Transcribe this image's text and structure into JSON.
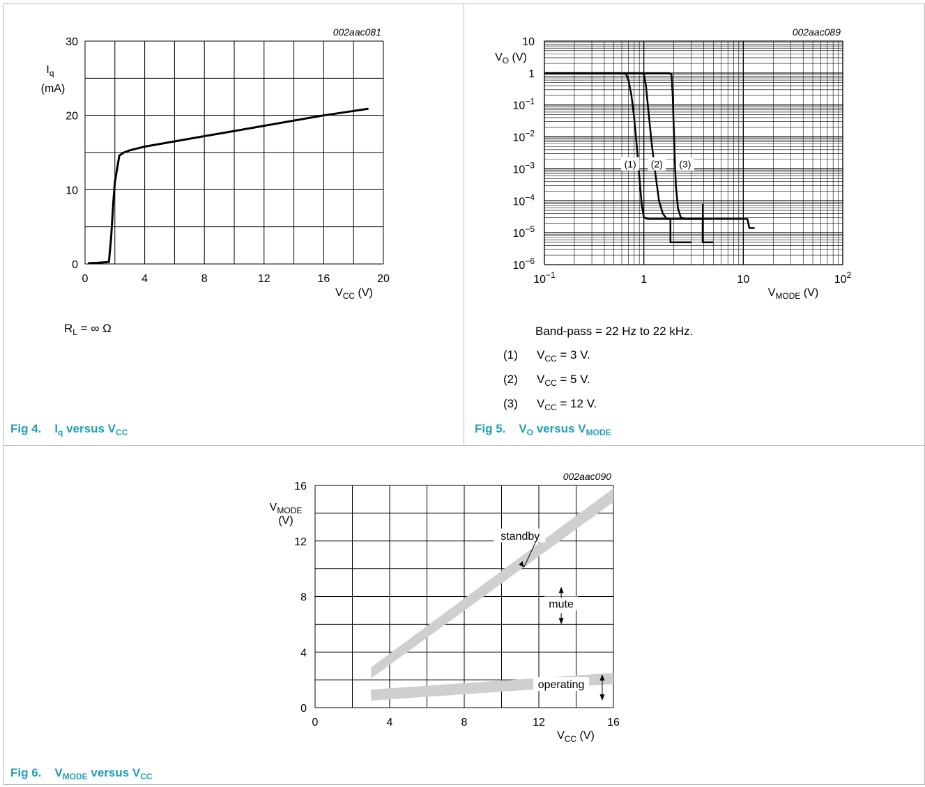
{
  "colors": {
    "accent": "#1f9fb4",
    "band": "#cfcfcf"
  },
  "fig4": {
    "caption": {
      "prefix": "Fig 4.",
      "a": "I",
      "a_sub": "q",
      "mid": " versus V",
      "b_sub": "CC"
    },
    "note": {
      "pre": "R",
      "sub": "L",
      "post": " = ∞ Ω"
    },
    "chart_data": {
      "type": "line",
      "id_label": "002aac081",
      "ylabel_main": "I",
      "ylabel_sub": "q",
      "yunit": "(mA)",
      "xlabel_main": "V",
      "xlabel_sub": "CC",
      "xunit": " (V)",
      "xlim": [
        0,
        20
      ],
      "ylim": [
        0,
        30
      ],
      "x_grid": [
        0,
        2,
        4,
        6,
        8,
        10,
        12,
        14,
        16,
        18,
        20
      ],
      "y_grid": [
        0,
        5,
        10,
        15,
        20,
        25,
        30
      ],
      "x_ticks": [
        {
          "v": 0,
          "label": "0"
        },
        {
          "v": 4,
          "label": "4"
        },
        {
          "v": 8,
          "label": "8"
        },
        {
          "v": 12,
          "label": "12"
        },
        {
          "v": 16,
          "label": "16"
        },
        {
          "v": 20,
          "label": "20"
        }
      ],
      "y_ticks": [
        {
          "v": 0,
          "label": "0"
        },
        {
          "v": 10,
          "label": "10"
        },
        {
          "v": 20,
          "label": "20"
        },
        {
          "v": 30,
          "label": "30"
        }
      ],
      "grid": true,
      "series": [
        {
          "x": [
            0.2,
            0.8,
            1.6,
            1.75,
            1.9,
            2.0,
            2.3,
            2.6,
            3.0,
            4.0,
            6.0,
            8.0,
            10.0,
            12.0,
            14.0,
            16.0,
            18.0,
            19.0
          ],
          "y": [
            0.1,
            0.15,
            0.25,
            3.5,
            8.5,
            11.0,
            14.6,
            15.0,
            15.3,
            15.8,
            16.5,
            17.2,
            17.9,
            18.6,
            19.3,
            20.0,
            20.6,
            20.9
          ]
        }
      ]
    }
  },
  "fig5": {
    "caption": {
      "prefix": "Fig 5.",
      "a": "V",
      "a_sub": "O",
      "mid": " versus V",
      "b_sub": "MODE"
    },
    "notes": {
      "bandpass": "Band-pass = 22 Hz to 22 kHz.",
      "items": [
        {
          "num": "(1)",
          "pre": "V",
          "sub": "CC",
          "post": " = 3 V."
        },
        {
          "num": "(2)",
          "pre": "V",
          "sub": "CC",
          "post": " = 5 V."
        },
        {
          "num": "(3)",
          "pre": "V",
          "sub": "CC",
          "post": " = 12 V."
        }
      ]
    },
    "chart_data": {
      "type": "line",
      "id_label": "002aac089",
      "scale": "log-log",
      "ylabel_main": "V",
      "ylabel_sub": "O",
      "yunit": " (V)",
      "xlabel_main": "V",
      "xlabel_sub": "MODE",
      "xunit": " (V)",
      "xlim": [
        0.1,
        100
      ],
      "ylim": [
        1e-06,
        10
      ],
      "x_ticks": [
        {
          "v": 0.1,
          "base": "10",
          "exp": "−1"
        },
        {
          "v": 1,
          "base": "1",
          "exp": ""
        },
        {
          "v": 10,
          "base": "10",
          "exp": ""
        },
        {
          "v": 100,
          "base": "10",
          "exp": "2"
        }
      ],
      "y_ticks": [
        {
          "v": 10,
          "base": "10",
          "exp": ""
        },
        {
          "v": 1,
          "base": "1",
          "exp": ""
        },
        {
          "v": 0.1,
          "base": "10",
          "exp": "−1"
        },
        {
          "v": 0.01,
          "base": "10",
          "exp": "−2"
        },
        {
          "v": 0.001,
          "base": "10",
          "exp": "−3"
        },
        {
          "v": 0.0001,
          "base": "10",
          "exp": "−4"
        },
        {
          "v": 1e-05,
          "base": "10",
          "exp": "−5"
        },
        {
          "v": 1e-06,
          "base": "10",
          "exp": "−6"
        }
      ],
      "grid": true,
      "series": [
        {
          "name": "(1)",
          "x": [
            0.1,
            0.62,
            0.66,
            0.7,
            0.75,
            0.8,
            0.85,
            0.9,
            0.95,
            1.0,
            1.1,
            1.85,
            1.85,
            3.0
          ],
          "y": [
            1,
            1,
            0.95,
            0.6,
            0.2,
            0.04,
            0.005,
            0.0006,
            8e-05,
            3e-05,
            2.7e-05,
            2.7e-05,
            5e-06,
            5e-06
          ]
        },
        {
          "name": "(2)",
          "x": [
            0.1,
            0.95,
            1.0,
            1.05,
            1.12,
            1.2,
            1.3,
            1.42,
            1.55,
            1.7,
            3.9,
            3.9,
            5.0
          ],
          "y": [
            1,
            1,
            0.95,
            0.4,
            0.05,
            0.006,
            0.0008,
            0.0001,
            4e-05,
            2.7e-05,
            2.7e-05,
            5e-06,
            5e-06
          ]
        },
        {
          "name": "(3)",
          "x": [
            0.1,
            1.8,
            1.9,
            1.95,
            2.0,
            2.05,
            2.1,
            2.2,
            2.35,
            2.6,
            11.0,
            11.5,
            13.0
          ],
          "y": [
            1,
            1,
            0.9,
            0.2,
            0.02,
            0.002,
            0.0003,
            6e-05,
            3e-05,
            2.7e-05,
            2.7e-05,
            1.4e-05,
            1.4e-05
          ]
        }
      ],
      "vertical_marker": {
        "x": 3.9,
        "y_top": 8e-05,
        "y_bottom": 5e-06
      },
      "curve_labels": [
        {
          "text": "(1)",
          "x": 0.73,
          "y": 0.0014
        },
        {
          "text": "(2)",
          "x": 1.35,
          "y": 0.0014
        },
        {
          "text": "(3)",
          "x": 2.6,
          "y": 0.0014
        }
      ]
    }
  },
  "fig6": {
    "caption": {
      "prefix": "Fig 6.",
      "a": "V",
      "a_sub": "MODE",
      "mid": " versus V",
      "b_sub": "CC"
    },
    "chart_data": {
      "type": "area",
      "id_label": "002aac090",
      "ylabel_main": "V",
      "ylabel_sub": "MODE",
      "yunit": "(V)",
      "xlabel_main": "V",
      "xlabel_sub": "CC",
      "xunit": " (V)",
      "xlim": [
        0,
        16
      ],
      "ylim": [
        0,
        16
      ],
      "x_grid": [
        0,
        2,
        4,
        6,
        8,
        10,
        12,
        14,
        16
      ],
      "y_grid": [
        0,
        2,
        4,
        6,
        8,
        10,
        12,
        14,
        16
      ],
      "x_ticks": [
        {
          "v": 0,
          "label": "0"
        },
        {
          "v": 4,
          "label": "4"
        },
        {
          "v": 8,
          "label": "8"
        },
        {
          "v": 12,
          "label": "12"
        },
        {
          "v": 16,
          "label": "16"
        }
      ],
      "y_ticks": [
        {
          "v": 0,
          "label": "0"
        },
        {
          "v": 4,
          "label": "4"
        },
        {
          "v": 8,
          "label": "8"
        },
        {
          "v": 12,
          "label": "12"
        },
        {
          "v": 16,
          "label": "16"
        }
      ],
      "grid": true,
      "bands": [
        {
          "name": "standby",
          "x": [
            3,
            16
          ],
          "lower": [
            2.1,
            14.8
          ],
          "upper": [
            2.9,
            15.8
          ]
        },
        {
          "name": "operating",
          "x": [
            3,
            16
          ],
          "lower": [
            0.5,
            1.7
          ],
          "upper": [
            1.3,
            2.5
          ]
        }
      ],
      "annotations": [
        {
          "text": "standby",
          "x": 11,
          "y": 12.2,
          "arrow_to": [
            11.2,
            10.1
          ]
        },
        {
          "text": "mute",
          "x": 13.2,
          "y": 12.2,
          "arrow_up": [
            13.2,
            8.6
          ],
          "arrow_down": [
            13.2,
            6.1
          ],
          "text_y": 7.35
        },
        {
          "text": "operating",
          "x": 13.2,
          "y": 1.5,
          "arrow_x": 15.4,
          "arrow_up": 2.3,
          "arrow_down": 0.6
        }
      ]
    }
  }
}
